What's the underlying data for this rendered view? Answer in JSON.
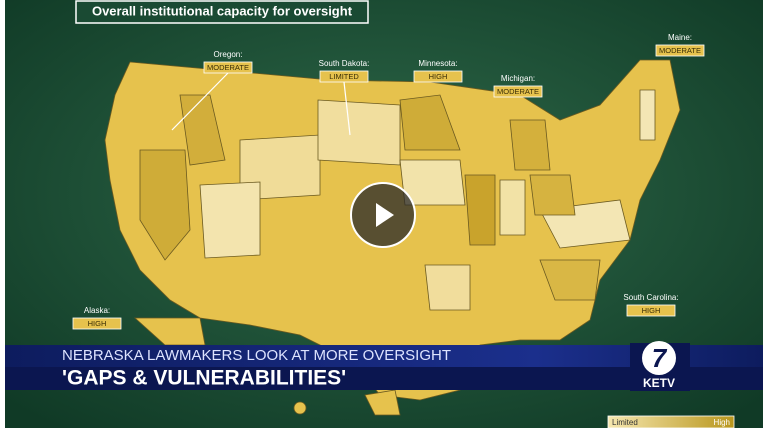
{
  "video": {
    "title": "Overall institutional capacity for oversight",
    "callouts": [
      {
        "state": "Oregon:",
        "rating": "MODERATE"
      },
      {
        "state": "South Dakota:",
        "rating": "LIMITED"
      },
      {
        "state": "Minnesota:",
        "rating": "HIGH"
      },
      {
        "state": "Michigan:",
        "rating": "MODERATE"
      },
      {
        "state": "Maine:",
        "rating": "MODERATE"
      },
      {
        "state": "Alaska:",
        "rating": "HIGH"
      },
      {
        "state": "South Carolina:",
        "rating": "HIGH"
      }
    ],
    "legend": {
      "low": "Limited",
      "high": "High"
    }
  },
  "lower_third": {
    "kicker": "NEBRASKA LAWMAKERS LOOK AT MORE OVERSIGHT",
    "headline": "'GAPS & VULNERABILITIES'",
    "logo_number": "7",
    "station": "KETV"
  }
}
